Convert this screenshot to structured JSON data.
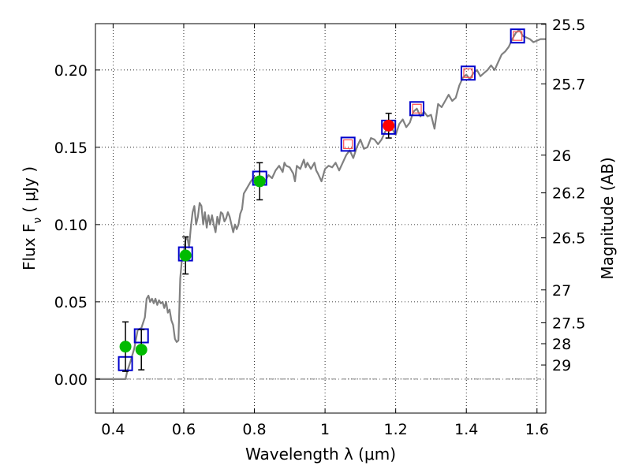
{
  "chart_data": {
    "type": "scatter",
    "title": "",
    "xlabel": "Wavelength  λ (μm)",
    "ylabel": "Flux  F",
    "ylabel_sub": "ν",
    "ylabel_unit": "( μJy )",
    "ylabel_right": "Magnitude (AB)",
    "xlim": [
      0.35,
      1.625
    ],
    "ylim": [
      -0.022,
      0.23
    ],
    "grid": true,
    "x_ticks": [
      0.4,
      0.6,
      0.8,
      1.0,
      1.2,
      1.4,
      1.6
    ],
    "x_tick_labels": [
      "0.4",
      "0.6",
      "0.8",
      "1",
      "1.2",
      "1.4",
      "1.6"
    ],
    "y_ticks": [
      0.0,
      0.05,
      0.1,
      0.15,
      0.2
    ],
    "y_tick_labels": [
      "0.00",
      "0.05",
      "0.10",
      "0.15",
      "0.20"
    ],
    "right_ticks": [
      {
        "label": "25.5",
        "flux": 0.2296
      },
      {
        "label": "25.7",
        "flux": 0.191
      },
      {
        "label": "26",
        "flux": 0.1449
      },
      {
        "label": "26.2",
        "flux": 0.1205
      },
      {
        "label": "26.5",
        "flux": 0.0914
      },
      {
        "label": "27",
        "flux": 0.0577
      },
      {
        "label": "27.5",
        "flux": 0.0364
      },
      {
        "label": "28",
        "flux": 0.0229
      },
      {
        "label": "29",
        "flux": 0.0091
      }
    ],
    "series": [
      {
        "name": "model SED",
        "kind": "line",
        "color": "#808080",
        "points": [
          [
            0.35,
            0.0
          ],
          [
            0.42,
            0.0
          ],
          [
            0.435,
            0.0
          ],
          [
            0.44,
            0.005
          ],
          [
            0.45,
            0.012
          ],
          [
            0.46,
            0.02
          ],
          [
            0.47,
            0.032
          ],
          [
            0.48,
            0.033
          ],
          [
            0.49,
            0.04
          ],
          [
            0.495,
            0.052
          ],
          [
            0.5,
            0.054
          ],
          [
            0.505,
            0.05
          ],
          [
            0.51,
            0.052
          ],
          [
            0.515,
            0.049
          ],
          [
            0.52,
            0.052
          ],
          [
            0.525,
            0.048
          ],
          [
            0.53,
            0.051
          ],
          [
            0.535,
            0.049
          ],
          [
            0.54,
            0.05
          ],
          [
            0.545,
            0.046
          ],
          [
            0.55,
            0.05
          ],
          [
            0.555,
            0.043
          ],
          [
            0.56,
            0.045
          ],
          [
            0.565,
            0.038
          ],
          [
            0.57,
            0.035
          ],
          [
            0.575,
            0.026
          ],
          [
            0.58,
            0.024
          ],
          [
            0.585,
            0.025
          ],
          [
            0.59,
            0.065
          ],
          [
            0.595,
            0.078
          ],
          [
            0.6,
            0.082
          ],
          [
            0.605,
            0.09
          ],
          [
            0.61,
            0.092
          ],
          [
            0.615,
            0.085
          ],
          [
            0.62,
            0.098
          ],
          [
            0.625,
            0.108
          ],
          [
            0.63,
            0.112
          ],
          [
            0.635,
            0.1
          ],
          [
            0.64,
            0.105
          ],
          [
            0.645,
            0.114
          ],
          [
            0.65,
            0.112
          ],
          [
            0.655,
            0.1
          ],
          [
            0.66,
            0.108
          ],
          [
            0.665,
            0.098
          ],
          [
            0.67,
            0.106
          ],
          [
            0.675,
            0.1
          ],
          [
            0.68,
            0.106
          ],
          [
            0.685,
            0.1
          ],
          [
            0.69,
            0.095
          ],
          [
            0.695,
            0.105
          ],
          [
            0.7,
            0.1
          ],
          [
            0.705,
            0.108
          ],
          [
            0.71,
            0.107
          ],
          [
            0.715,
            0.102
          ],
          [
            0.72,
            0.104
          ],
          [
            0.725,
            0.108
          ],
          [
            0.73,
            0.105
          ],
          [
            0.735,
            0.1
          ],
          [
            0.74,
            0.095
          ],
          [
            0.745,
            0.1
          ],
          [
            0.75,
            0.097
          ],
          [
            0.755,
            0.1
          ],
          [
            0.76,
            0.107
          ],
          [
            0.765,
            0.11
          ],
          [
            0.77,
            0.12
          ],
          [
            0.78,
            0.124
          ],
          [
            0.79,
            0.128
          ],
          [
            0.8,
            0.131
          ],
          [
            0.81,
            0.126
          ],
          [
            0.82,
            0.13
          ],
          [
            0.83,
            0.128
          ],
          [
            0.84,
            0.132
          ],
          [
            0.85,
            0.13
          ],
          [
            0.86,
            0.135
          ],
          [
            0.87,
            0.138
          ],
          [
            0.88,
            0.134
          ],
          [
            0.885,
            0.14
          ],
          [
            0.89,
            0.138
          ],
          [
            0.9,
            0.137
          ],
          [
            0.91,
            0.133
          ],
          [
            0.915,
            0.128
          ],
          [
            0.92,
            0.138
          ],
          [
            0.93,
            0.136
          ],
          [
            0.94,
            0.142
          ],
          [
            0.945,
            0.137
          ],
          [
            0.95,
            0.14
          ],
          [
            0.96,
            0.136
          ],
          [
            0.97,
            0.14
          ],
          [
            0.975,
            0.135
          ],
          [
            0.98,
            0.133
          ],
          [
            0.99,
            0.128
          ],
          [
            1.0,
            0.136
          ],
          [
            1.01,
            0.138
          ],
          [
            1.02,
            0.137
          ],
          [
            1.03,
            0.14
          ],
          [
            1.04,
            0.135
          ],
          [
            1.05,
            0.14
          ],
          [
            1.06,
            0.145
          ],
          [
            1.07,
            0.148
          ],
          [
            1.08,
            0.143
          ],
          [
            1.09,
            0.15
          ],
          [
            1.1,
            0.155
          ],
          [
            1.11,
            0.149
          ],
          [
            1.12,
            0.15
          ],
          [
            1.13,
            0.156
          ],
          [
            1.14,
            0.155
          ],
          [
            1.15,
            0.152
          ],
          [
            1.16,
            0.155
          ],
          [
            1.17,
            0.16
          ],
          [
            1.18,
            0.163
          ],
          [
            1.19,
            0.162
          ],
          [
            1.2,
            0.158
          ],
          [
            1.21,
            0.165
          ],
          [
            1.22,
            0.168
          ],
          [
            1.23,
            0.163
          ],
          [
            1.24,
            0.166
          ],
          [
            1.25,
            0.173
          ],
          [
            1.26,
            0.175
          ],
          [
            1.27,
            0.17
          ],
          [
            1.28,
            0.173
          ],
          [
            1.29,
            0.17
          ],
          [
            1.3,
            0.171
          ],
          [
            1.31,
            0.162
          ],
          [
            1.32,
            0.178
          ],
          [
            1.33,
            0.176
          ],
          [
            1.34,
            0.18
          ],
          [
            1.35,
            0.184
          ],
          [
            1.36,
            0.18
          ],
          [
            1.37,
            0.182
          ],
          [
            1.38,
            0.19
          ],
          [
            1.39,
            0.195
          ],
          [
            1.4,
            0.197
          ],
          [
            1.41,
            0.194
          ],
          [
            1.42,
            0.198
          ],
          [
            1.43,
            0.2
          ],
          [
            1.44,
            0.196
          ],
          [
            1.45,
            0.198
          ],
          [
            1.46,
            0.2
          ],
          [
            1.47,
            0.203
          ],
          [
            1.48,
            0.2
          ],
          [
            1.49,
            0.205
          ],
          [
            1.5,
            0.21
          ],
          [
            1.51,
            0.212
          ],
          [
            1.52,
            0.215
          ],
          [
            1.53,
            0.22
          ],
          [
            1.54,
            0.224
          ],
          [
            1.55,
            0.226
          ],
          [
            1.56,
            0.222
          ],
          [
            1.57,
            0.221
          ],
          [
            1.58,
            0.22
          ],
          [
            1.59,
            0.218
          ],
          [
            1.6,
            0.219
          ],
          [
            1.61,
            0.22
          ],
          [
            1.625,
            0.22
          ]
        ]
      },
      {
        "name": "observed flux (green)",
        "kind": "points",
        "color": "#00bb00",
        "x": [
          0.435,
          0.48,
          0.605,
          0.815
        ],
        "y": [
          0.021,
          0.019,
          0.08,
          0.128
        ],
        "yerr": [
          0.016,
          0.013,
          0.012,
          0.012
        ]
      },
      {
        "name": "observed flux (red)",
        "kind": "points",
        "color": "#ff0000",
        "x": [
          1.18
        ],
        "y": [
          0.164
        ],
        "yerr": [
          0.008
        ]
      },
      {
        "name": "model photometry (blue squares)",
        "kind": "squares",
        "color": "#0000cc",
        "x": [
          0.435,
          0.48,
          0.605,
          0.815,
          1.065,
          1.18,
          1.26,
          1.405,
          1.545
        ],
        "y": [
          0.01,
          0.028,
          0.081,
          0.13,
          0.152,
          0.163,
          0.175,
          0.198,
          0.222
        ]
      },
      {
        "name": "model photometry (red squares)",
        "kind": "inner-squares",
        "color": "#ff4d4d",
        "x": [
          1.065,
          1.26,
          1.405,
          1.545
        ],
        "y": [
          0.152,
          0.175,
          0.198,
          0.222
        ]
      }
    ]
  }
}
